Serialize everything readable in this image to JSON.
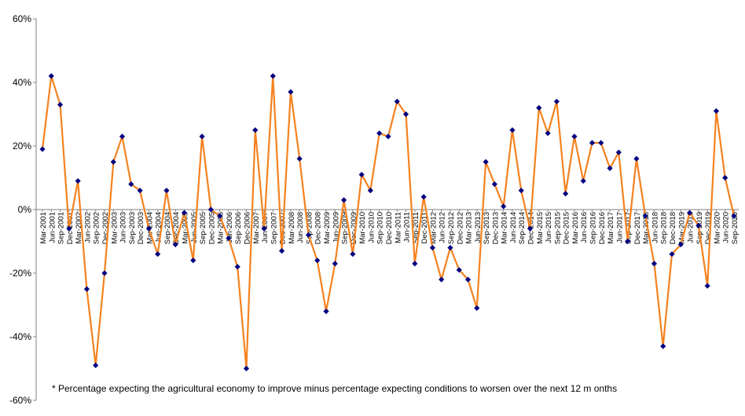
{
  "chart_data": {
    "type": "line",
    "title": "",
    "xlabel": "",
    "ylabel": "",
    "ylim": [
      -60,
      60
    ],
    "ytick_labels": [
      "60%",
      "40%",
      "20%",
      "0%",
      "-20%",
      "-40%",
      "-60%"
    ],
    "grid": false,
    "legend": "none",
    "x": [
      "Mar-2001",
      "Jun-2001",
      "Sep-2001",
      "Dec-2001",
      "Mar-2002",
      "Jun-2002",
      "Sep-2002",
      "Dec-2002",
      "Mar-2003",
      "Jun-2003",
      "Sep-2003",
      "Dec-2003",
      "Mar-2004",
      "Jun-2004",
      "Sep-2004",
      "Dec-2004",
      "Mar-2005",
      "Jun-2005",
      "Sep-2005",
      "Dec-2005",
      "Mar-2006",
      "Jun-2006",
      "Sep-2006",
      "Dec-2006",
      "Mar-2007",
      "Jun-2007",
      "Sep-2007",
      "Dec-2007",
      "Mar-2008",
      "Jun-2008",
      "Sep-2008",
      "Dec-2008",
      "Mar-2009",
      "Jun-2009",
      "Sep-2009",
      "Dec-2009",
      "Mar-2010",
      "Jun-2010",
      "Sep-2010",
      "Dec-2010",
      "Mar-2011",
      "Jun-2011",
      "Sep-2011",
      "Dec-2011",
      "Mar-2012",
      "Jun-2012",
      "Sep-2012",
      "Dec-2012",
      "Mar-2013",
      "Jun-2013",
      "Sep-2013",
      "Dec-2013",
      "Mar-2014",
      "Jun-2014",
      "Sep-2014",
      "Dec-2014",
      "Mar-2015",
      "Jun-2015",
      "Sep-2015",
      "Dec-2015",
      "Mar-2016",
      "Jun-2016",
      "Sep-2016",
      "Dec-2016",
      "Mar-2017",
      "Jun-2017",
      "Sep-2017",
      "Dec-2017",
      "Mar-2018",
      "Jun-2018",
      "Sep-2018",
      "Dec-2018",
      "Mar-2019",
      "Jun-2019",
      "Sep-2019",
      "Dec-2019",
      "Mar-2020",
      "Jun-2020",
      "Sep-2020"
    ],
    "series": [
      {
        "name": "",
        "values": [
          19,
          42,
          33,
          -6,
          9,
          -25,
          -49,
          -20,
          15,
          23,
          8,
          6,
          -6,
          -14,
          6,
          -11,
          -1,
          -16,
          23,
          0,
          -2,
          -9,
          -18,
          -50,
          25,
          -6,
          42,
          -13,
          37,
          16,
          -8,
          -16,
          -32,
          -17,
          3,
          -14,
          11,
          6,
          24,
          23,
          34,
          30,
          -17,
          4,
          -12,
          -22,
          -12,
          -19,
          -22,
          -31,
          15,
          8,
          1,
          25,
          6,
          -6,
          32,
          24,
          34,
          5,
          23,
          9,
          21,
          21,
          13,
          18,
          -10,
          16,
          -2,
          -17,
          -43,
          -14,
          -11,
          -1,
          -5,
          -24,
          31,
          10,
          -2
        ]
      }
    ],
    "line_color": "#F5821F",
    "marker_color": "#000080",
    "footnote": "* Percentage expecting the agricultural economy to improve minus percentage expecting conditions to worsen over the next 12 m onths"
  }
}
